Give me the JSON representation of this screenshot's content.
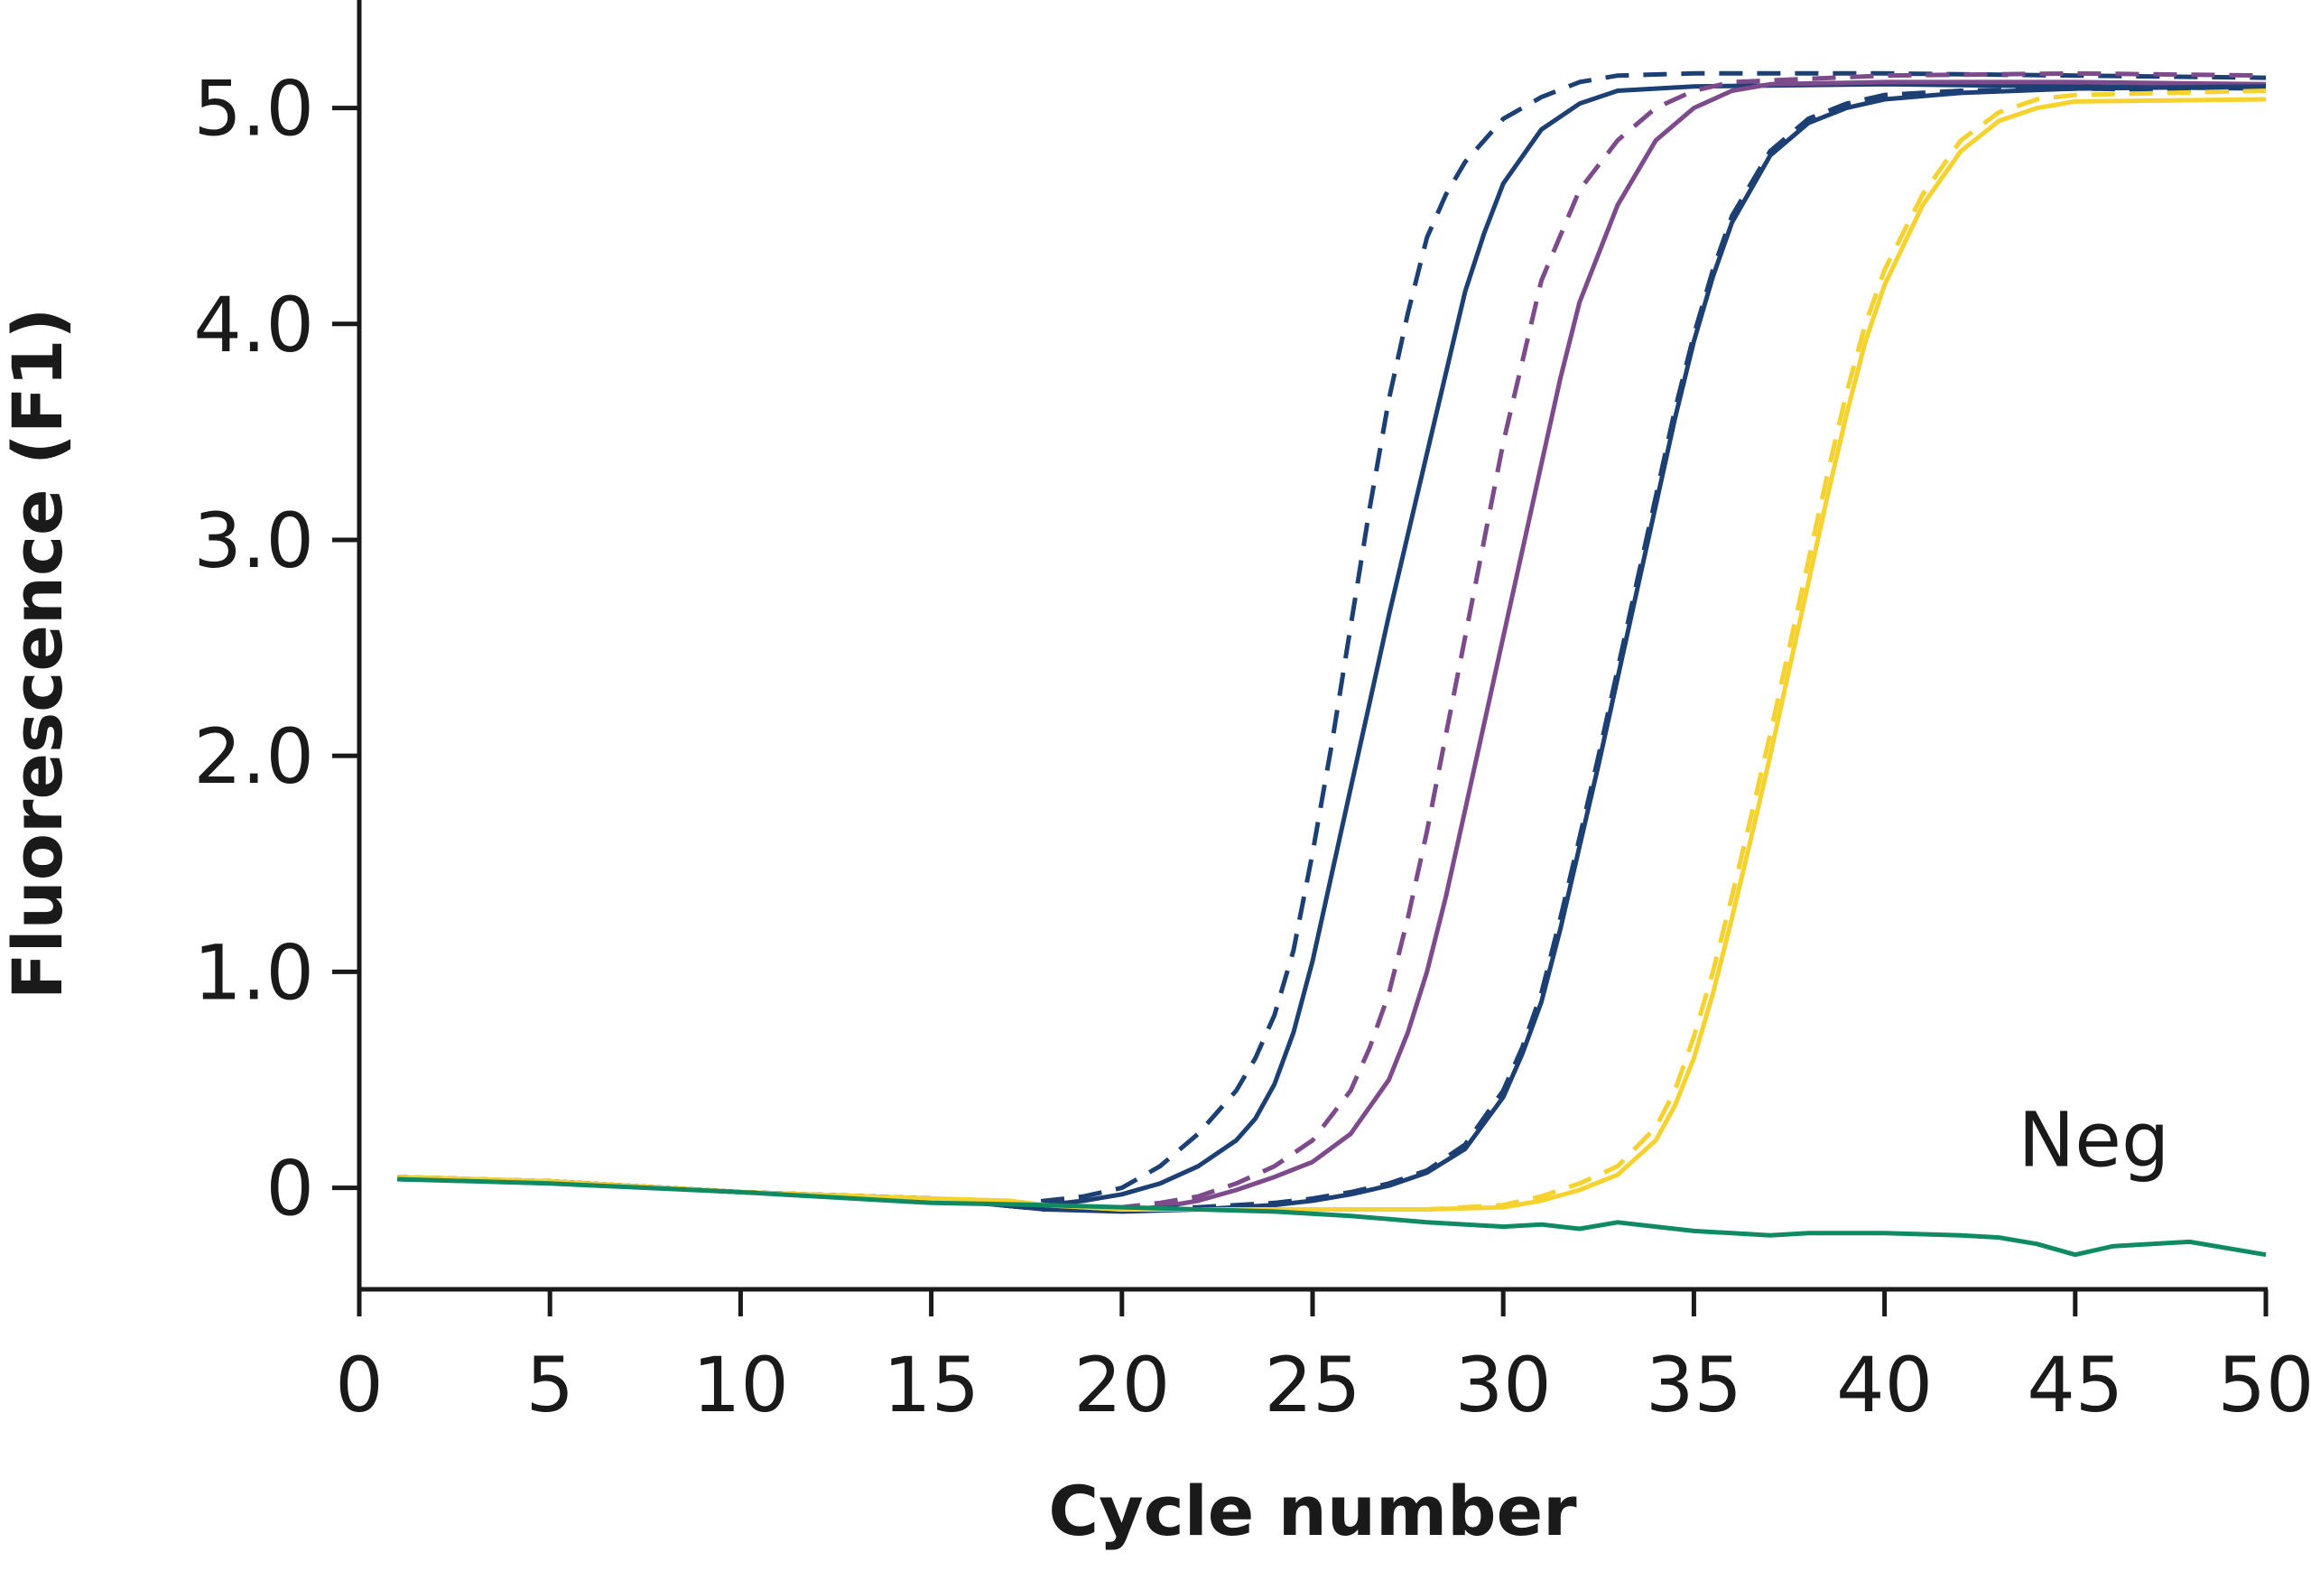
{
  "chart_data": {
    "type": "line",
    "title": "",
    "xlabel": "Cycle number",
    "ylabel": "Fluorescence (F1)",
    "xlim": [
      0,
      50
    ],
    "ylim": [
      -0.47,
      5.5
    ],
    "xticks": [
      0,
      5,
      10,
      15,
      20,
      25,
      30,
      35,
      40,
      45,
      50
    ],
    "xtick_labels": [
      "0",
      "5",
      "10",
      "15",
      "20",
      "25",
      "30",
      "35",
      "40",
      "45",
      "50"
    ],
    "yticks": [
      0,
      1.0,
      2.0,
      3.0,
      4.0,
      5.0
    ],
    "ytick_labels": [
      "0",
      "1.0",
      "2.0",
      "3.0",
      "4.0",
      "5.0"
    ],
    "grid": false,
    "annotations": [
      {
        "text": "Neg",
        "x": 43.5,
        "y": 0.1
      }
    ],
    "series": [
      {
        "name": "blue-dashed-1",
        "color": "#1c3f74",
        "dash": true,
        "x": [
          1,
          5,
          10,
          15,
          17,
          18,
          19,
          20,
          21,
          22,
          23,
          23.5,
          24,
          24.5,
          25,
          25.5,
          26,
          26.5,
          27,
          27.5,
          28,
          28.5,
          29,
          30,
          31,
          32,
          33,
          35,
          40,
          45,
          50
        ],
        "y": [
          0.05,
          0.03,
          -0.02,
          -0.05,
          -0.08,
          -0.06,
          -0.04,
          0.0,
          0.1,
          0.25,
          0.45,
          0.6,
          0.8,
          1.1,
          1.55,
          2.05,
          2.6,
          3.15,
          3.65,
          4.05,
          4.4,
          4.6,
          4.75,
          4.95,
          5.05,
          5.12,
          5.15,
          5.16,
          5.16,
          5.15,
          5.14
        ]
      },
      {
        "name": "blue-solid-1",
        "color": "#1c3f74",
        "dash": false,
        "x": [
          1,
          5,
          10,
          15,
          17,
          18,
          19,
          20,
          21,
          22,
          23,
          23.5,
          24,
          24.5,
          25,
          25.5,
          26,
          26.5,
          27,
          28,
          29,
          29.5,
          30,
          31,
          32,
          33,
          35,
          40,
          45,
          50
        ],
        "y": [
          0.04,
          0.03,
          -0.02,
          -0.05,
          -0.08,
          -0.08,
          -0.06,
          -0.03,
          0.02,
          0.1,
          0.22,
          0.32,
          0.48,
          0.72,
          1.05,
          1.45,
          1.85,
          2.25,
          2.65,
          3.4,
          4.15,
          4.42,
          4.65,
          4.9,
          5.02,
          5.08,
          5.1,
          5.11,
          5.1,
          5.09
        ]
      },
      {
        "name": "purple-dashed",
        "color": "#7d4a8c",
        "dash": true,
        "x": [
          1,
          5,
          10,
          15,
          18,
          20,
          21,
          22,
          23,
          24,
          25,
          26,
          26.5,
          27,
          27.5,
          28,
          28.5,
          29,
          29.5,
          30,
          31,
          32,
          33,
          34,
          35,
          36,
          40,
          45,
          50
        ],
        "y": [
          0.05,
          0.03,
          -0.02,
          -0.05,
          -0.1,
          -0.09,
          -0.07,
          -0.04,
          0.02,
          0.1,
          0.22,
          0.45,
          0.65,
          0.9,
          1.25,
          1.65,
          2.1,
          2.55,
          3.0,
          3.45,
          4.2,
          4.62,
          4.85,
          5.0,
          5.08,
          5.12,
          5.15,
          5.16,
          5.15
        ]
      },
      {
        "name": "purple-solid",
        "color": "#7d4a8c",
        "dash": false,
        "x": [
          1,
          5,
          10,
          15,
          18,
          20,
          21,
          22,
          23,
          24,
          25,
          26,
          27,
          27.5,
          28,
          28.5,
          29,
          29.5,
          30,
          30.5,
          31,
          31.5,
          32,
          33,
          34,
          35,
          36,
          37,
          40,
          45,
          50
        ],
        "y": [
          0.05,
          0.03,
          -0.02,
          -0.05,
          -0.1,
          -0.1,
          -0.09,
          -0.06,
          -0.01,
          0.05,
          0.12,
          0.25,
          0.5,
          0.72,
          1.0,
          1.35,
          1.75,
          2.15,
          2.55,
          2.95,
          3.35,
          3.75,
          4.1,
          4.55,
          4.85,
          5.0,
          5.08,
          5.11,
          5.12,
          5.12,
          5.11
        ]
      },
      {
        "name": "navy-dashed",
        "color": "#1c3f74",
        "dash": true,
        "x": [
          1,
          5,
          10,
          15,
          18,
          20,
          22,
          24,
          25,
          26,
          27,
          28,
          29,
          30,
          30.5,
          31,
          31.5,
          32,
          32.5,
          33,
          33.5,
          34,
          34.5,
          35,
          35.5,
          36,
          37,
          38,
          39,
          40,
          42,
          45,
          50
        ],
        "y": [
          0.04,
          0.03,
          -0.02,
          -0.05,
          -0.1,
          -0.1,
          -0.09,
          -0.07,
          -0.05,
          -0.02,
          0.02,
          0.08,
          0.2,
          0.45,
          0.65,
          0.9,
          1.25,
          1.62,
          2.0,
          2.4,
          2.8,
          3.2,
          3.6,
          3.95,
          4.25,
          4.5,
          4.8,
          4.95,
          5.02,
          5.06,
          5.08,
          5.09,
          5.08
        ]
      },
      {
        "name": "navy-solid",
        "color": "#1c3f74",
        "dash": false,
        "x": [
          1,
          5,
          10,
          15,
          18,
          20,
          22,
          24,
          25,
          26,
          27,
          28,
          29,
          30,
          30.5,
          31,
          31.5,
          32,
          32.5,
          33,
          33.5,
          34,
          34.5,
          35,
          35.5,
          36,
          37,
          38,
          39,
          40,
          42,
          45,
          50
        ],
        "y": [
          0.04,
          0.03,
          -0.02,
          -0.05,
          -0.1,
          -0.11,
          -0.1,
          -0.08,
          -0.06,
          -0.03,
          0.01,
          0.07,
          0.18,
          0.42,
          0.62,
          0.86,
          1.2,
          1.58,
          1.96,
          2.36,
          2.76,
          3.16,
          3.56,
          3.92,
          4.22,
          4.47,
          4.78,
          4.93,
          5.0,
          5.04,
          5.07,
          5.09,
          5.1
        ]
      },
      {
        "name": "yellow-dashed",
        "color": "#f5d22e",
        "dash": true,
        "x": [
          1,
          5,
          10,
          15,
          17,
          18,
          20,
          22,
          25,
          28,
          30,
          31,
          32,
          33,
          34,
          34.5,
          35,
          35.5,
          36,
          36.5,
          37,
          37.5,
          38,
          38.5,
          39,
          39.5,
          40,
          41,
          42,
          43,
          44,
          45,
          50
        ],
        "y": [
          0.05,
          0.03,
          -0.02,
          -0.05,
          -0.06,
          -0.08,
          -0.1,
          -0.1,
          -0.1,
          -0.1,
          -0.08,
          -0.04,
          0.02,
          0.1,
          0.28,
          0.45,
          0.7,
          1.0,
          1.35,
          1.72,
          2.1,
          2.5,
          2.9,
          3.3,
          3.68,
          4.0,
          4.25,
          4.6,
          4.85,
          4.98,
          5.04,
          5.06,
          5.08
        ]
      },
      {
        "name": "yellow-solid",
        "color": "#f5d22e",
        "dash": false,
        "x": [
          1,
          5,
          10,
          15,
          17,
          18,
          20,
          22,
          25,
          28,
          30,
          31,
          32,
          33,
          34,
          34.5,
          35,
          35.5,
          36,
          36.5,
          37,
          37.5,
          38,
          38.5,
          39,
          39.5,
          40,
          41,
          42,
          43,
          44,
          45,
          50
        ],
        "y": [
          0.05,
          0.03,
          -0.02,
          -0.05,
          -0.06,
          -0.08,
          -0.1,
          -0.1,
          -0.1,
          -0.1,
          -0.09,
          -0.06,
          -0.01,
          0.06,
          0.22,
          0.38,
          0.6,
          0.9,
          1.25,
          1.62,
          2.0,
          2.4,
          2.8,
          3.2,
          3.58,
          3.92,
          4.18,
          4.55,
          4.8,
          4.94,
          5.0,
          5.03,
          5.04
        ]
      },
      {
        "name": "Neg",
        "color": "#108a62",
        "dash": false,
        "x": [
          1,
          5,
          10,
          15,
          18,
          20,
          22,
          24,
          26,
          28,
          30,
          31,
          32,
          33,
          34,
          35,
          36,
          37,
          38,
          40,
          42,
          43,
          44,
          45,
          46,
          48,
          50
        ],
        "y": [
          0.04,
          0.02,
          -0.02,
          -0.07,
          -0.08,
          -0.09,
          -0.1,
          -0.11,
          -0.13,
          -0.16,
          -0.18,
          -0.17,
          -0.19,
          -0.16,
          -0.18,
          -0.2,
          -0.21,
          -0.22,
          -0.21,
          -0.21,
          -0.22,
          -0.23,
          -0.26,
          -0.31,
          -0.27,
          -0.25,
          -0.31
        ]
      }
    ]
  }
}
